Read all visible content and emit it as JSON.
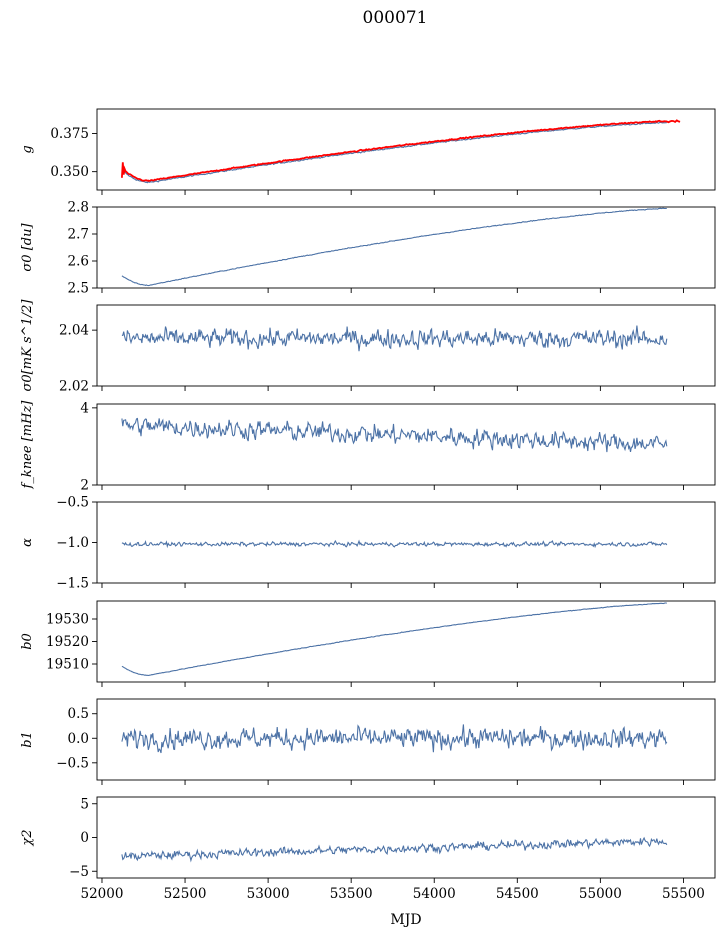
{
  "figure": {
    "title": "000071"
  },
  "chart_data": {
    "type": "line",
    "title": "000071",
    "xlabel": "MJD",
    "xlim": [
      51970,
      55690
    ],
    "xticks": [
      "52000",
      "52500",
      "53000",
      "53500",
      "54000",
      "54500",
      "55000",
      "55500"
    ],
    "x_range": [
      52120,
      55400
    ],
    "colors": {
      "series": "#4c72a6",
      "fit": "#ff0000"
    },
    "panels": [
      {
        "ylabel": "g",
        "ylim": [
          0.338,
          0.391
        ],
        "yticks": [
          "0.350",
          "0.375"
        ],
        "series": [
          {
            "values_start": 0.351,
            "values_min": 0.343,
            "values_end": 0.382,
            "noise": 0.0006
          },
          {
            "name": "",
            "values_start": 0.352,
            "values_min": 0.344,
            "values_end": 0.383,
            "noise": 0.0005
          }
        ]
      },
      {
        "ylabel": "σ0 [du]",
        "ylim": [
          2.5,
          2.8
        ],
        "yticks": [
          "2.5",
          "2.6",
          "2.7",
          "2.8"
        ],
        "series": [
          {
            "values_start": 2.545,
            "values_min": 2.51,
            "values_end": 2.795,
            "noise": 0.002
          }
        ]
      },
      {
        "ylabel": "σ0[mK s^1/2]",
        "ylim": [
          2.02,
          2.049
        ],
        "yticks": [
          "2.02",
          "2.04"
        ],
        "series": [
          {
            "mean": 2.037,
            "noise": 0.004
          }
        ]
      },
      {
        "ylabel": "f_knee [mHz]",
        "ylim": [
          2,
          4.1
        ],
        "yticks": [
          "2",
          "4"
        ],
        "series": [
          {
            "mean_start": 3.55,
            "mean_end": 3.05,
            "noise": 0.35
          }
        ]
      },
      {
        "ylabel": "α",
        "ylim": [
          -1.5,
          -0.5
        ],
        "yticks": [
          "−1.5",
          "−1.0",
          "−0.5"
        ],
        "series": [
          {
            "mean": -1.02,
            "noise": 0.035
          }
        ]
      },
      {
        "ylabel": "b0",
        "ylim": [
          19502,
          19538
        ],
        "yticks": [
          "19510",
          "19520",
          "19530"
        ],
        "series": [
          {
            "values_start": 19509,
            "values_min": 19505,
            "values_end": 19537,
            "noise": 0.2
          }
        ]
      },
      {
        "ylabel": "b1",
        "ylim": [
          -0.85,
          0.8
        ],
        "yticks": [
          "−0.5",
          "0.0",
          "0.5"
        ],
        "series": [
          {
            "mean": 0.0,
            "noise": 0.3
          }
        ]
      },
      {
        "ylabel": "χ2",
        "ylim": [
          -6,
          6
        ],
        "yticks": [
          "−5",
          "0",
          "5"
        ],
        "series": [
          {
            "mean_start": -2.8,
            "mean_end": -0.5,
            "noise": 0.9
          }
        ]
      }
    ]
  }
}
